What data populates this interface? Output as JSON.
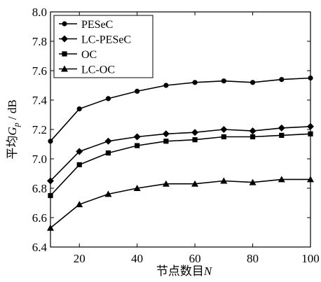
{
  "chart_data": {
    "type": "line",
    "title": "",
    "xlabel": "节点数目N",
    "ylabel": "平均Gp / dB",
    "xlabel_parts": [
      "节点数目",
      "N"
    ],
    "ylabel_parts": [
      "平均",
      "G",
      "p",
      " / dB"
    ],
    "x": [
      10,
      20,
      30,
      40,
      50,
      60,
      70,
      80,
      90,
      100
    ],
    "xlim": [
      10,
      100
    ],
    "ylim": [
      6.4,
      8.0
    ],
    "xticks": [
      20,
      40,
      60,
      80,
      100
    ],
    "yticks": [
      6.4,
      6.6,
      6.8,
      7.0,
      7.2,
      7.4,
      7.6,
      7.8,
      8.0
    ],
    "grid": false,
    "legend_position": "top-left",
    "series": [
      {
        "name": "PESeC",
        "marker": "circle",
        "values": [
          7.12,
          7.34,
          7.41,
          7.46,
          7.5,
          7.52,
          7.53,
          7.52,
          7.54,
          7.55
        ]
      },
      {
        "name": "LC-PESeC",
        "marker": "diamond",
        "values": [
          6.85,
          7.05,
          7.12,
          7.15,
          7.17,
          7.18,
          7.2,
          7.19,
          7.21,
          7.22
        ]
      },
      {
        "name": "OC",
        "marker": "square",
        "values": [
          6.75,
          6.96,
          7.04,
          7.09,
          7.12,
          7.13,
          7.15,
          7.15,
          7.16,
          7.17
        ]
      },
      {
        "name": "LC-OC",
        "marker": "triangle",
        "values": [
          6.53,
          6.69,
          6.76,
          6.8,
          6.83,
          6.83,
          6.85,
          6.84,
          6.86,
          6.86
        ]
      }
    ],
    "line_color": "#000000"
  }
}
